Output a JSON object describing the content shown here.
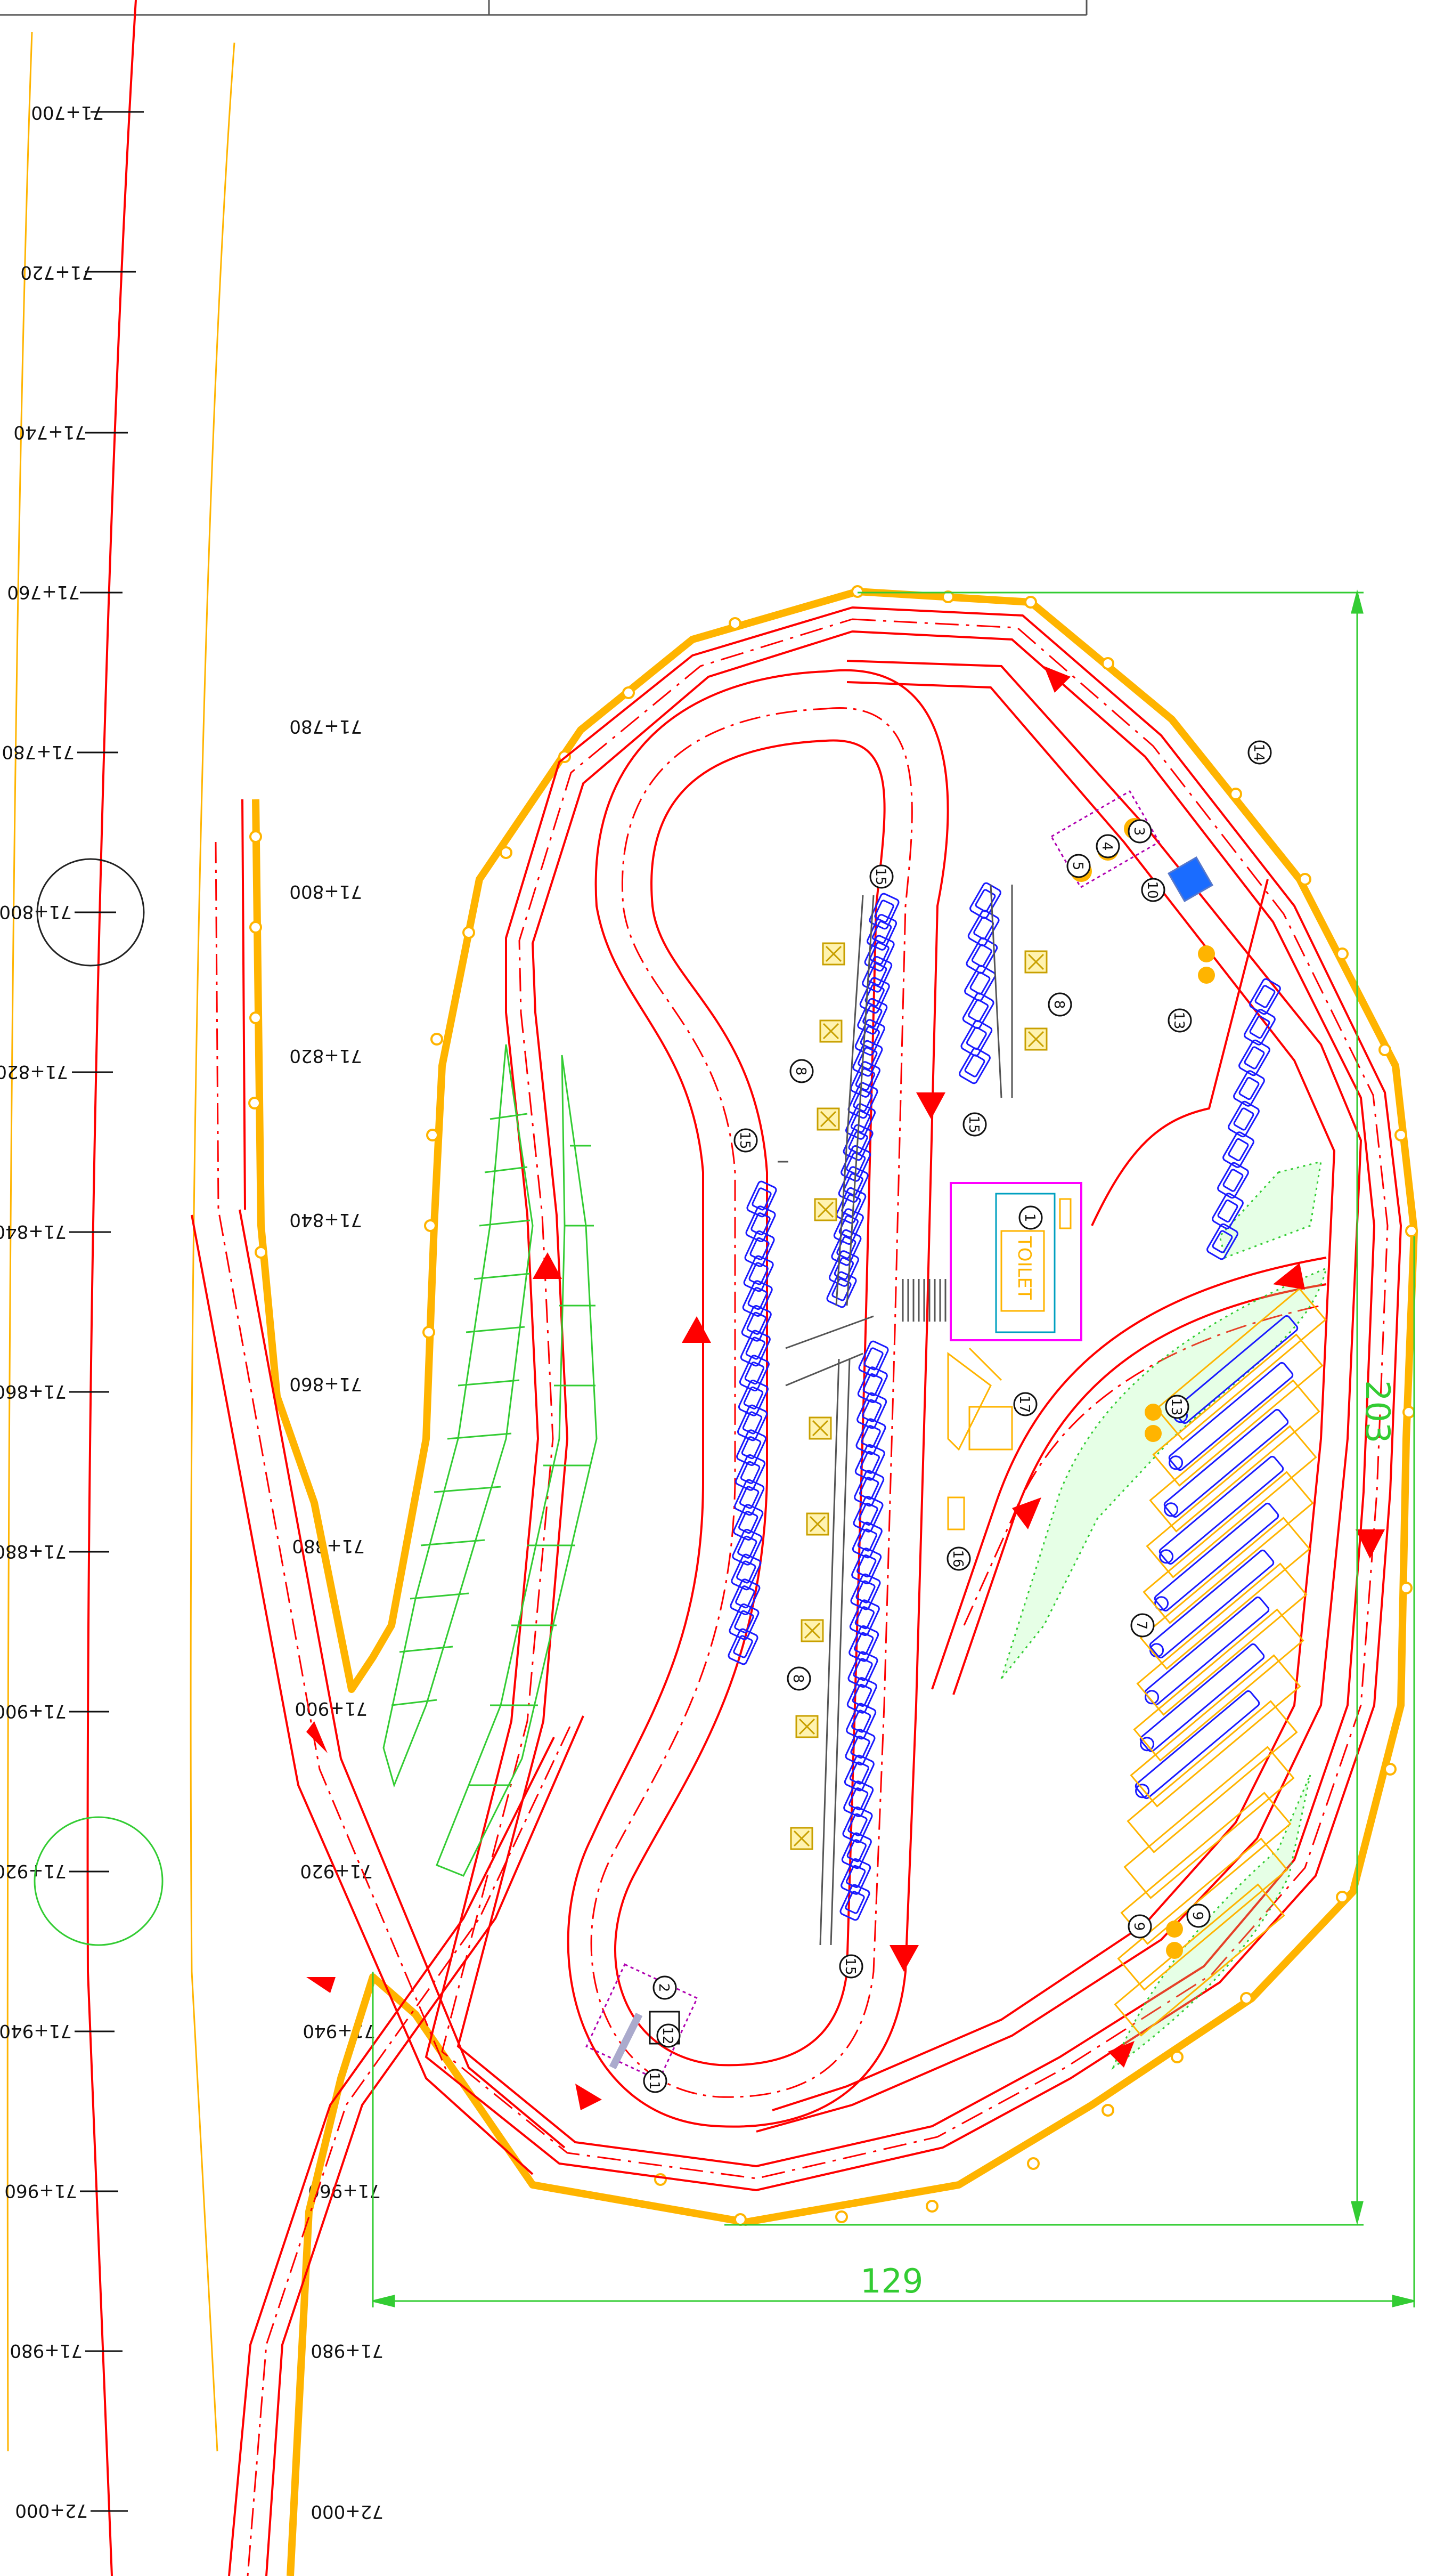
{
  "plan": {
    "chainage_left": [
      "71+700",
      "71+720",
      "71+740",
      "71+760",
      "71+780",
      "71+800",
      "71+820",
      "71+840",
      "71+860",
      "71+880",
      "71+900",
      "71+920",
      "71+940",
      "71+960",
      "71+980",
      "72+000"
    ],
    "chainage_inner": [
      "71+780",
      "71+800",
      "71+820",
      "71+840",
      "71+860",
      "71+880",
      "71+900",
      "71+920",
      "71+940",
      "71+960",
      "71+980",
      "72+000"
    ],
    "dimensions": {
      "width": "129",
      "height": "203"
    },
    "toilet_label": "TOILET",
    "callouts": [
      "1",
      "2",
      "3",
      "4",
      "5",
      "7",
      "8",
      "8",
      "8",
      "9",
      "9",
      "10",
      "11",
      "12",
      "13",
      "13",
      "14",
      "15",
      "15",
      "15",
      "15",
      "16",
      "17"
    ],
    "colors": {
      "road": "#ff0000",
      "boundary": "#ffb400",
      "parking": "#1a1aff",
      "dimension": "#33cc33",
      "landscape": "#33cc33",
      "building": "#ff00ff"
    }
  }
}
